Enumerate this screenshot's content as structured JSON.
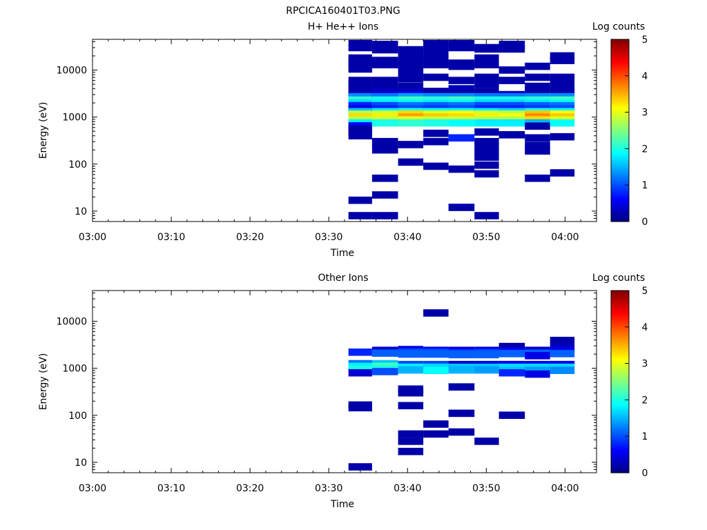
{
  "figure_title": "RPCICA160401T03.PNG",
  "colors": {
    "low": "#00008f",
    "colormap": "jet"
  },
  "chart_data": [
    {
      "type": "heatmap",
      "title": "H+ He++ Ions",
      "xlabel": "Time",
      "ylabel": "Energy (eV)",
      "xticks": [
        "03:00",
        "03:10",
        "03:20",
        "03:30",
        "03:40",
        "03:50",
        "04:00"
      ],
      "xlim_minutes": [
        0,
        64
      ],
      "y_scale": "log",
      "ylim": [
        6,
        45000
      ],
      "yticks": [
        "10",
        "100",
        "1000",
        "10000"
      ],
      "colorbar": {
        "label": "Log counts",
        "ticks": [
          "0",
          "1",
          "2",
          "3",
          "4",
          "5"
        ],
        "range": [
          0,
          5
        ]
      },
      "time_columns": [
        {
          "start": "03:32.5",
          "end": "03:35.5"
        },
        {
          "start": "03:35.5",
          "end": "03:38.8"
        },
        {
          "start": "03:38.8",
          "end": "03:42.0"
        },
        {
          "start": "03:42.0",
          "end": "03:45.2"
        },
        {
          "start": "03:45.2",
          "end": "03:48.5"
        },
        {
          "start": "03:48.5",
          "end": "03:51.6"
        },
        {
          "start": "03:51.6",
          "end": "03:54.9"
        },
        {
          "start": "03:54.9",
          "end": "03:58.1"
        },
        {
          "start": "03:58.1",
          "end": "04:01.2"
        }
      ],
      "cells": [
        [
          0,
          40000,
          0.2
        ],
        [
          0,
          30000,
          0.2
        ],
        [
          0,
          18000,
          0.2
        ],
        [
          0,
          15000,
          0.2
        ],
        [
          0,
          13000,
          0.2
        ],
        [
          0,
          10500,
          0.2
        ],
        [
          0,
          6000,
          0.2
        ],
        [
          0,
          5000,
          0.2
        ],
        [
          0,
          4200,
          0.2
        ],
        [
          0,
          3500,
          0.2
        ],
        [
          0,
          3000,
          0.3
        ],
        [
          0,
          2700,
          1.3
        ],
        [
          0,
          2300,
          2.1
        ],
        [
          0,
          2000,
          1.7
        ],
        [
          0,
          1750,
          0.8
        ],
        [
          0,
          1500,
          0.5
        ],
        [
          0,
          1300,
          1.6
        ],
        [
          0,
          1150,
          2.8
        ],
        [
          0,
          1000,
          3.3
        ],
        [
          0,
          870,
          2.8
        ],
        [
          0,
          750,
          1.8
        ],
        [
          0,
          650,
          0.6
        ],
        [
          0,
          560,
          0.2
        ],
        [
          0,
          480,
          0.2
        ],
        [
          0,
          400,
          0.2
        ],
        [
          0,
          17,
          0.2
        ],
        [
          0,
          8,
          0.2
        ],
        [
          1,
          35000,
          0.2
        ],
        [
          1,
          27000,
          0.2
        ],
        [
          1,
          16000,
          0.2
        ],
        [
          1,
          13000,
          0.2
        ],
        [
          1,
          6000,
          0.2
        ],
        [
          1,
          4500,
          0.2
        ],
        [
          1,
          3500,
          0.3
        ],
        [
          1,
          3000,
          0.4
        ],
        [
          1,
          2700,
          1.2
        ],
        [
          1,
          2300,
          2.0
        ],
        [
          1,
          2000,
          1.8
        ],
        [
          1,
          1750,
          1.0
        ],
        [
          1,
          1500,
          0.8
        ],
        [
          1,
          1300,
          1.8
        ],
        [
          1,
          1150,
          2.9
        ],
        [
          1,
          1000,
          3.2
        ],
        [
          1,
          870,
          2.9
        ],
        [
          1,
          750,
          2.0
        ],
        [
          1,
          300,
          0.2
        ],
        [
          1,
          250,
          0.2
        ],
        [
          1,
          200,
          0.2
        ],
        [
          1,
          50,
          0.2
        ],
        [
          1,
          22,
          0.2
        ],
        [
          1,
          8,
          0.2
        ],
        [
          2,
          27000,
          0.2
        ],
        [
          2,
          20000,
          0.2
        ],
        [
          2,
          15000,
          0.2
        ],
        [
          2,
          12000,
          0.2
        ],
        [
          2,
          9000,
          0.2
        ],
        [
          2,
          6500,
          0.2
        ],
        [
          2,
          4500,
          0.2
        ],
        [
          2,
          3500,
          0.3
        ],
        [
          2,
          3000,
          0.5
        ],
        [
          2,
          2700,
          1.4
        ],
        [
          2,
          2300,
          2.2
        ],
        [
          2,
          2000,
          1.9
        ],
        [
          2,
          1750,
          1.2
        ],
        [
          2,
          1500,
          1.0
        ],
        [
          2,
          1300,
          2.0
        ],
        [
          2,
          1150,
          3.3
        ],
        [
          2,
          1000,
          3.6
        ],
        [
          2,
          870,
          3.0
        ],
        [
          2,
          750,
          2.1
        ],
        [
          2,
          260,
          0.2
        ],
        [
          2,
          110,
          0.2
        ],
        [
          3,
          38000,
          0.2
        ],
        [
          3,
          30000,
          0.2
        ],
        [
          3,
          22000,
          0.2
        ],
        [
          3,
          16000,
          0.2
        ],
        [
          3,
          13000,
          0.2
        ],
        [
          3,
          7000,
          0.2
        ],
        [
          3,
          3500,
          0.2
        ],
        [
          3,
          2700,
          1.3
        ],
        [
          3,
          2300,
          2.1
        ],
        [
          3,
          2000,
          1.8
        ],
        [
          3,
          1750,
          1.1
        ],
        [
          3,
          1500,
          0.9
        ],
        [
          3,
          1300,
          1.9
        ],
        [
          3,
          1150,
          3.0
        ],
        [
          3,
          1000,
          3.4
        ],
        [
          3,
          870,
          2.9
        ],
        [
          3,
          750,
          2.0
        ],
        [
          3,
          450,
          0.2
        ],
        [
          3,
          300,
          0.2
        ],
        [
          3,
          90,
          0.2
        ],
        [
          4,
          40000,
          0.2
        ],
        [
          4,
          30000,
          0.2
        ],
        [
          4,
          14000,
          0.2
        ],
        [
          4,
          12000,
          0.2
        ],
        [
          4,
          6000,
          0.2
        ],
        [
          4,
          4000,
          0.3
        ],
        [
          4,
          3300,
          0.2
        ],
        [
          4,
          2700,
          1.3
        ],
        [
          4,
          2300,
          2.2
        ],
        [
          4,
          2000,
          1.9
        ],
        [
          4,
          1750,
          1.2
        ],
        [
          4,
          1500,
          1.0
        ],
        [
          4,
          1300,
          1.9
        ],
        [
          4,
          1150,
          3.1
        ],
        [
          4,
          1000,
          3.3
        ],
        [
          4,
          870,
          2.9
        ],
        [
          4,
          750,
          1.9
        ],
        [
          4,
          360,
          0.8
        ],
        [
          4,
          78,
          0.2
        ],
        [
          4,
          12,
          0.2
        ],
        [
          5,
          30000,
          0.2
        ],
        [
          5,
          28000,
          0.2
        ],
        [
          5,
          18000,
          0.2
        ],
        [
          5,
          13000,
          0.2
        ],
        [
          5,
          7000,
          0.2
        ],
        [
          5,
          5000,
          0.2
        ],
        [
          5,
          3500,
          0.2
        ],
        [
          5,
          2700,
          1.2
        ],
        [
          5,
          2300,
          2.0
        ],
        [
          5,
          2000,
          1.7
        ],
        [
          5,
          1750,
          1.0
        ],
        [
          5,
          1500,
          0.8
        ],
        [
          5,
          1300,
          1.8
        ],
        [
          5,
          1150,
          2.9
        ],
        [
          5,
          1000,
          3.2
        ],
        [
          5,
          870,
          2.8
        ],
        [
          5,
          750,
          1.8
        ],
        [
          5,
          480,
          0.2
        ],
        [
          5,
          300,
          0.2
        ],
        [
          5,
          240,
          0.2
        ],
        [
          5,
          180,
          0.2
        ],
        [
          5,
          140,
          0.2
        ],
        [
          5,
          95,
          0.2
        ],
        [
          5,
          62,
          0.2
        ],
        [
          5,
          8,
          0.2
        ],
        [
          6,
          35000,
          0.2
        ],
        [
          6,
          28000,
          0.2
        ],
        [
          6,
          10000,
          0.2
        ],
        [
          6,
          6000,
          0.2
        ],
        [
          6,
          3000,
          0.3
        ],
        [
          6,
          2700,
          1.2
        ],
        [
          6,
          2300,
          2.0
        ],
        [
          6,
          2000,
          1.7
        ],
        [
          6,
          1750,
          1.0
        ],
        [
          6,
          1500,
          0.8
        ],
        [
          6,
          1300,
          1.7
        ],
        [
          6,
          1150,
          2.8
        ],
        [
          6,
          1000,
          3.1
        ],
        [
          6,
          870,
          2.8
        ],
        [
          6,
          750,
          1.8
        ],
        [
          6,
          420,
          0.2
        ],
        [
          7,
          12000,
          0.2
        ],
        [
          7,
          7000,
          0.2
        ],
        [
          7,
          4500,
          0.2
        ],
        [
          7,
          3600,
          0.2
        ],
        [
          7,
          2700,
          1.3
        ],
        [
          7,
          2300,
          2.1
        ],
        [
          7,
          2000,
          1.8
        ],
        [
          7,
          1750,
          1.1
        ],
        [
          7,
          1500,
          0.9
        ],
        [
          7,
          1300,
          2.0
        ],
        [
          7,
          1150,
          3.4
        ],
        [
          7,
          1000,
          3.7
        ],
        [
          7,
          870,
          3.3
        ],
        [
          7,
          750,
          1.5
        ],
        [
          7,
          640,
          0.2
        ],
        [
          7,
          360,
          0.2
        ],
        [
          7,
          250,
          0.2
        ],
        [
          7,
          190,
          0.2
        ],
        [
          7,
          50,
          0.2
        ],
        [
          8,
          20000,
          0.2
        ],
        [
          8,
          16000,
          0.2
        ],
        [
          8,
          7000,
          0.2
        ],
        [
          8,
          6000,
          0.2
        ],
        [
          8,
          4500,
          0.2
        ],
        [
          8,
          3500,
          0.2
        ],
        [
          8,
          2700,
          1.3
        ],
        [
          8,
          2300,
          2.2
        ],
        [
          8,
          2000,
          1.9
        ],
        [
          8,
          1750,
          1.2
        ],
        [
          8,
          1500,
          1.0
        ],
        [
          8,
          1300,
          1.9
        ],
        [
          8,
          1150,
          3.1
        ],
        [
          8,
          1000,
          3.4
        ],
        [
          8,
          870,
          3.0
        ],
        [
          8,
          750,
          1.9
        ],
        [
          8,
          380,
          0.2
        ],
        [
          8,
          65,
          0.2
        ]
      ]
    },
    {
      "type": "heatmap",
      "title": "Other Ions",
      "xlabel": "Time",
      "ylabel": "Energy (eV)",
      "xticks": [
        "03:00",
        "03:10",
        "03:20",
        "03:30",
        "03:40",
        "03:50",
        "04:00"
      ],
      "xlim_minutes": [
        0,
        64
      ],
      "y_scale": "log",
      "ylim": [
        6,
        45000
      ],
      "yticks": [
        "10",
        "100",
        "1000",
        "10000"
      ],
      "colorbar": {
        "label": "Log counts",
        "ticks": [
          "0",
          "1",
          "2",
          "3",
          "4",
          "5"
        ],
        "range": [
          0,
          5
        ]
      },
      "time_columns": [
        {
          "start": "03:32.5",
          "end": "03:35.5"
        },
        {
          "start": "03:35.5",
          "end": "03:38.8"
        },
        {
          "start": "03:38.8",
          "end": "03:42.0"
        },
        {
          "start": "03:42.0",
          "end": "03:45.2"
        },
        {
          "start": "03:45.2",
          "end": "03:48.5"
        },
        {
          "start": "03:48.5",
          "end": "03:51.6"
        },
        {
          "start": "03:51.6",
          "end": "03:54.9"
        },
        {
          "start": "03:54.9",
          "end": "03:58.1"
        },
        {
          "start": "03:58.1",
          "end": "04:01.2"
        }
      ],
      "cells": [
        [
          0,
          2200,
          0.8
        ],
        [
          0,
          1250,
          1.2
        ],
        [
          0,
          1100,
          1.8
        ],
        [
          0,
          960,
          2.0
        ],
        [
          0,
          800,
          0.4
        ],
        [
          0,
          165,
          0.2
        ],
        [
          0,
          145,
          0.2
        ],
        [
          0,
          8,
          0.2
        ],
        [
          1,
          2400,
          0.4
        ],
        [
          1,
          2100,
          1.1
        ],
        [
          1,
          1250,
          1.6
        ],
        [
          1,
          1100,
          2.2
        ],
        [
          1,
          960,
          2.0
        ],
        [
          1,
          850,
          1.0
        ],
        [
          2,
          2500,
          0.5
        ],
        [
          2,
          2200,
          1.0
        ],
        [
          2,
          2000,
          1.1
        ],
        [
          2,
          1200,
          1.0
        ],
        [
          2,
          1050,
          1.8
        ],
        [
          2,
          920,
          1.5
        ],
        [
          2,
          360,
          0.2
        ],
        [
          2,
          300,
          0.2
        ],
        [
          2,
          160,
          0.2
        ],
        [
          2,
          40,
          0.2
        ],
        [
          2,
          28,
          0.2
        ],
        [
          2,
          17,
          0.2
        ],
        [
          3,
          15000,
          0.2
        ],
        [
          3,
          2400,
          0.6
        ],
        [
          3,
          2200,
          1.0
        ],
        [
          3,
          2000,
          1.1
        ],
        [
          3,
          1200,
          1.0
        ],
        [
          3,
          1050,
          1.7
        ],
        [
          3,
          900,
          1.9
        ],
        [
          3,
          65,
          0.2
        ],
        [
          3,
          40,
          0.2
        ],
        [
          4,
          2400,
          0.5
        ],
        [
          4,
          2100,
          1.0
        ],
        [
          4,
          1950,
          1.1
        ],
        [
          4,
          1200,
          0.4
        ],
        [
          4,
          1050,
          1.6
        ],
        [
          4,
          920,
          1.5
        ],
        [
          4,
          400,
          0.2
        ],
        [
          4,
          110,
          0.2
        ],
        [
          4,
          44,
          0.2
        ],
        [
          5,
          2400,
          0.5
        ],
        [
          5,
          2150,
          1.0
        ],
        [
          5,
          1950,
          1.1
        ],
        [
          5,
          1200,
          0.5
        ],
        [
          5,
          1050,
          1.6
        ],
        [
          5,
          920,
          1.4
        ],
        [
          5,
          28,
          0.2
        ],
        [
          6,
          2900,
          0.2
        ],
        [
          6,
          2300,
          0.6
        ],
        [
          6,
          2050,
          1.1
        ],
        [
          6,
          1200,
          0.6
        ],
        [
          6,
          1050,
          1.7
        ],
        [
          6,
          900,
          1.6
        ],
        [
          6,
          800,
          0.8
        ],
        [
          6,
          100,
          0.2
        ],
        [
          7,
          2400,
          0.4
        ],
        [
          7,
          2100,
          1.1
        ],
        [
          7,
          1850,
          0.5
        ],
        [
          7,
          1200,
          0.6
        ],
        [
          7,
          1050,
          1.7
        ],
        [
          7,
          900,
          1.4
        ],
        [
          7,
          750,
          0.5
        ],
        [
          8,
          3900,
          0.2
        ],
        [
          8,
          2800,
          0.3
        ],
        [
          8,
          2400,
          0.5
        ],
        [
          8,
          2050,
          1.1
        ],
        [
          8,
          1200,
          0.6
        ],
        [
          8,
          1050,
          1.7
        ],
        [
          8,
          900,
          1.3
        ]
      ]
    }
  ]
}
